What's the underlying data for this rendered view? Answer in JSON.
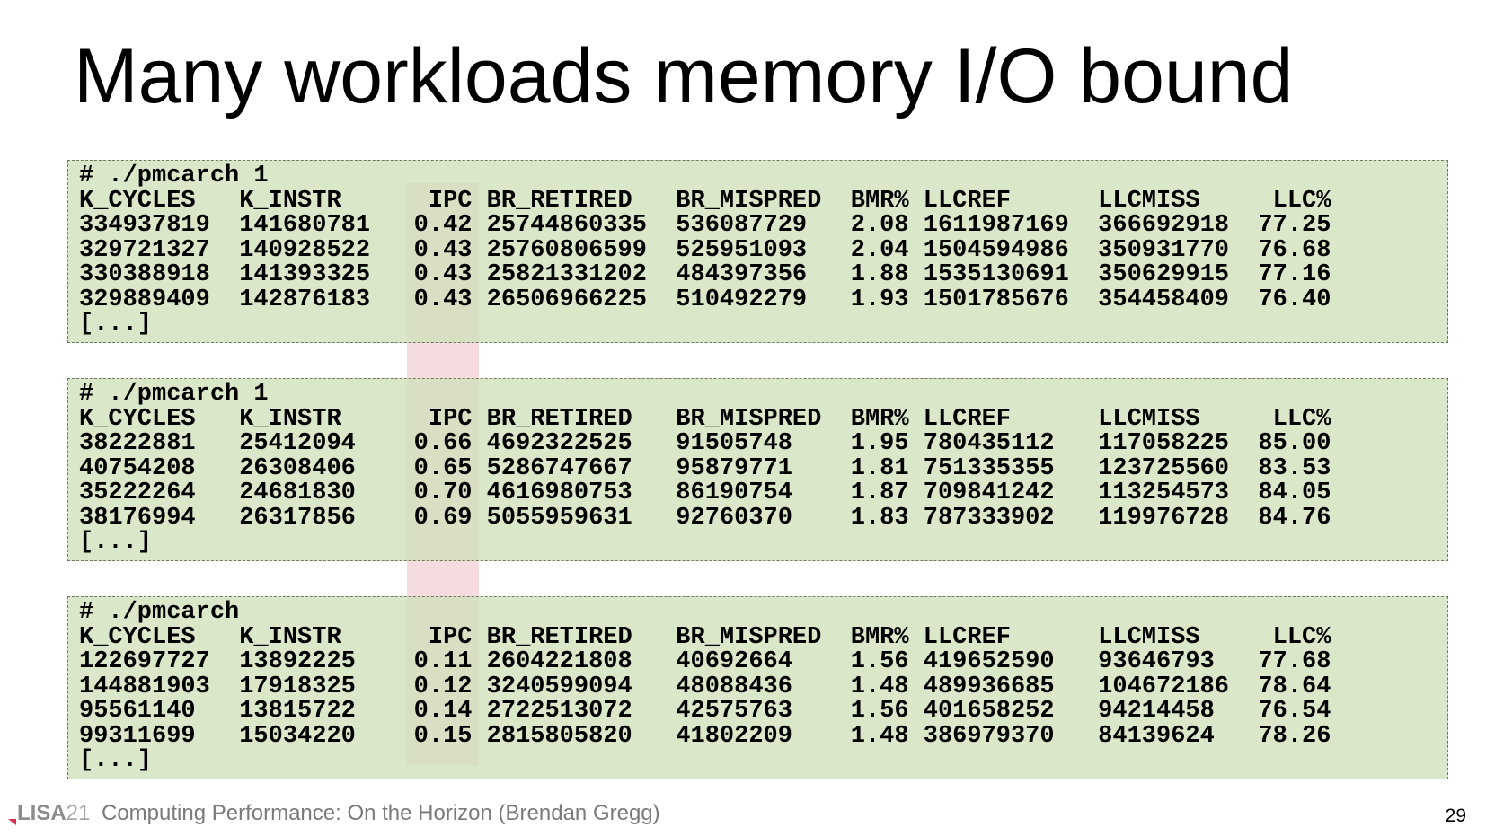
{
  "slide": {
    "title": "Many workloads memory I/O bound",
    "page_number": "29"
  },
  "footer": {
    "logo_lisa": "LISA",
    "logo_year": "21",
    "text": "Computing Performance: On the Horizon (Brendan Gregg)"
  },
  "colors": {
    "terminal_background": "#d0e0ba",
    "ipc_highlight": "#f3cdd2",
    "footer_accent": "#d2335a"
  },
  "terminals": [
    {
      "lines": [
        "# ./pmcarch 1",
        "K_CYCLES   K_INSTR      IPC BR_RETIRED   BR_MISPRED  BMR% LLCREF      LLCMISS     LLC%",
        "334937819  141680781   0.42 25744860335  536087729   2.08 1611987169  366692918  77.25",
        "329721327  140928522   0.43 25760806599  525951093   2.04 1504594986  350931770  76.68",
        "330388918  141393325   0.43 25821331202  484397356   1.88 1535130691  350629915  77.16",
        "329889409  142876183   0.43 26506966225  510492279   1.93 1501785676  354458409  76.40",
        "[...]"
      ]
    },
    {
      "lines": [
        "# ./pmcarch 1",
        "K_CYCLES   K_INSTR      IPC BR_RETIRED   BR_MISPRED  BMR% LLCREF      LLCMISS     LLC%",
        "38222881   25412094    0.66 4692322525   91505748    1.95 780435112   117058225  85.00",
        "40754208   26308406    0.65 5286747667   95879771    1.81 751335355   123725560  83.53",
        "35222264   24681830    0.70 4616980753   86190754    1.87 709841242   113254573  84.05",
        "38176994   26317856    0.69 5055959631   92760370    1.83 787333902   119976728  84.76",
        "[...]"
      ]
    },
    {
      "lines": [
        "# ./pmcarch",
        "K_CYCLES   K_INSTR      IPC BR_RETIRED   BR_MISPRED  BMR% LLCREF      LLCMISS     LLC%",
        "122697727  13892225    0.11 2604221808   40692664    1.56 419652590   93646793   77.68",
        "144881903  17918325    0.12 3240599094   48088436    1.48 489936685   104672186  78.64",
        "95561140   13815722    0.14 2722513072   42575763    1.56 401658252   94214458   76.54",
        "99311699   15034220    0.15 2815805820   41802209    1.48 386979370   84139624   78.26",
        "[...]"
      ]
    }
  ]
}
